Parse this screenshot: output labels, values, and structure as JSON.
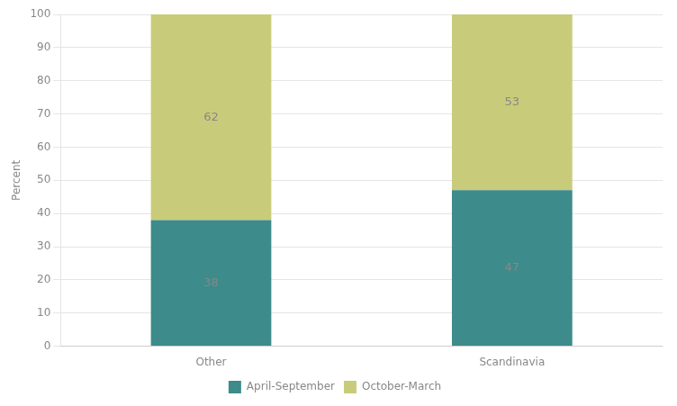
{
  "chart_data": {
    "type": "bar",
    "categories": [
      "Other",
      "Scandinavia"
    ],
    "series": [
      {
        "name": "April-September",
        "color": "#3d8b8b",
        "values": [
          38,
          47
        ]
      },
      {
        "name": "October-March",
        "color": "#c8cc7a",
        "values": [
          62,
          53
        ]
      }
    ],
    "ylabel": "Percent",
    "ylim": [
      0,
      100
    ],
    "yticks": [
      0,
      10,
      20,
      30,
      40,
      50,
      60,
      70,
      80,
      90,
      100
    ],
    "stacked": true,
    "grid": true,
    "data_labels": true,
    "legend": "bottom"
  }
}
